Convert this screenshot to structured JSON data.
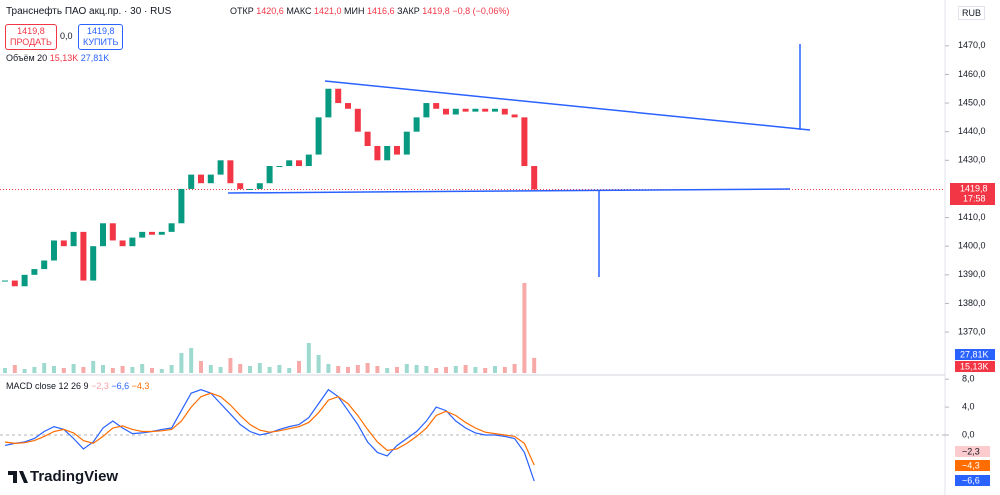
{
  "chart_data": {
    "type": "candlestick",
    "header": {
      "title": "Транснефть ПАО акц.пр. · 30 · RUS",
      "open_label": "ОТКР",
      "open": "1420,6",
      "high_label": "МАКС",
      "high": "1421,0",
      "low_label": "МИН",
      "low": "1416,6",
      "close_label": "ЗАКР",
      "close": "1419,8",
      "change": "−0,8 (−0,06%)",
      "sell_price": "1419,8",
      "sell": "ПРОДАТЬ",
      "spread": "0,0",
      "buy_price": "1419,8",
      "buy": "КУПИТЬ",
      "volume_title": "Объём 20",
      "volume_value": "15,13K",
      "volume_ma": "27,81K",
      "macd_title": "MACD close 12 26 9",
      "macd_hist": "−2,3",
      "macd_value": "−6,6",
      "macd_signal": "−4,3",
      "currency": "RUB",
      "last_price": "1419,8",
      "countdown": "17:58",
      "brand": "TradingView"
    },
    "close": [
      1388,
      1386,
      1390,
      1392,
      1395,
      1402,
      1400,
      1405,
      1388,
      1400,
      1408,
      1402,
      1400,
      1403,
      1405,
      1404,
      1405,
      1408,
      1420,
      1425,
      1422,
      1425,
      1430,
      1422,
      1420,
      1420,
      1422,
      1428,
      1428,
      1430,
      1428,
      1432,
      1445,
      1455,
      1450,
      1448,
      1440,
      1435,
      1430,
      1435,
      1432,
      1440,
      1445,
      1450,
      1448,
      1446,
      1448,
      1447,
      1448,
      1447,
      1448,
      1446,
      1445,
      1428,
      1419.8
    ],
    "up_color": "#089981",
    "down_color": "#f23645",
    "ylim": [
      1355,
      1486
    ],
    "yticks": [
      {
        "value": 1470,
        "label": "1470,0"
      },
      {
        "value": 1460,
        "label": "1460,0"
      },
      {
        "value": 1450,
        "label": "1450,0"
      },
      {
        "value": 1440,
        "label": "1440,0"
      },
      {
        "value": 1430,
        "label": "1430,0"
      },
      {
        "value": 1410,
        "label": "1410,0"
      },
      {
        "value": 1400,
        "label": "1400,0"
      },
      {
        "value": 1390,
        "label": "1390,0"
      },
      {
        "value": 1380,
        "label": "1380,0"
      },
      {
        "value": 1370,
        "label": "1370,0"
      }
    ],
    "volume": [
      5,
      8,
      4,
      6,
      10,
      7,
      5,
      9,
      6,
      12,
      8,
      5,
      7,
      6,
      9,
      5,
      4,
      8,
      20,
      25,
      12,
      8,
      6,
      15,
      9,
      7,
      10,
      6,
      8,
      5,
      12,
      30,
      18,
      9,
      7,
      6,
      8,
      10,
      7,
      5,
      6,
      9,
      8,
      7,
      5,
      6,
      7,
      8,
      6,
      5,
      7,
      6,
      9,
      90,
      15.13
    ],
    "macd": {
      "ylim": [
        -8.6,
        8.6
      ],
      "yticks": [
        {
          "value": 8,
          "label": "8,0"
        },
        {
          "value": 4,
          "label": "4,0"
        },
        {
          "value": 0,
          "label": "0,0"
        }
      ],
      "macd_color": "#2962ff",
      "signal_color": "#ff6d00",
      "macd": [
        -1.5,
        -1.2,
        -1,
        -0.5,
        0.5,
        1.2,
        0.8,
        -0.5,
        -2,
        -1,
        1,
        2,
        1,
        0.2,
        0.3,
        0.5,
        0.8,
        1,
        3.5,
        6,
        6.5,
        6,
        4.5,
        3,
        1.5,
        0.5,
        0,
        0.3,
        0.8,
        1.2,
        1.5,
        2.5,
        4.5,
        6.5,
        5.5,
        3.5,
        1.5,
        -1,
        -2.5,
        -3,
        -1.5,
        -0.5,
        0.5,
        2,
        4,
        3.5,
        2,
        1,
        0.3,
        0,
        0,
        -0.2,
        -0.5,
        -2.5,
        -6.6
      ],
      "signal": [
        -1,
        -1.2,
        -1.1,
        -0.8,
        -0.2,
        0.5,
        0.8,
        0.3,
        -0.8,
        -1.2,
        -0.2,
        1,
        1.3,
        0.8,
        0.5,
        0.5,
        0.6,
        0.8,
        2,
        4,
        5.5,
        6,
        5.5,
        4.3,
        2.8,
        1.5,
        0.7,
        0.4,
        0.6,
        0.9,
        1.2,
        1.8,
        3.2,
        5,
        5.5,
        4.5,
        2.8,
        0.8,
        -1,
        -2.2,
        -2,
        -1.2,
        -0.2,
        1,
        2.8,
        3.4,
        2.8,
        1.8,
        1,
        0.4,
        0.2,
        0,
        -0.2,
        -1.2,
        -4.3
      ]
    }
  }
}
